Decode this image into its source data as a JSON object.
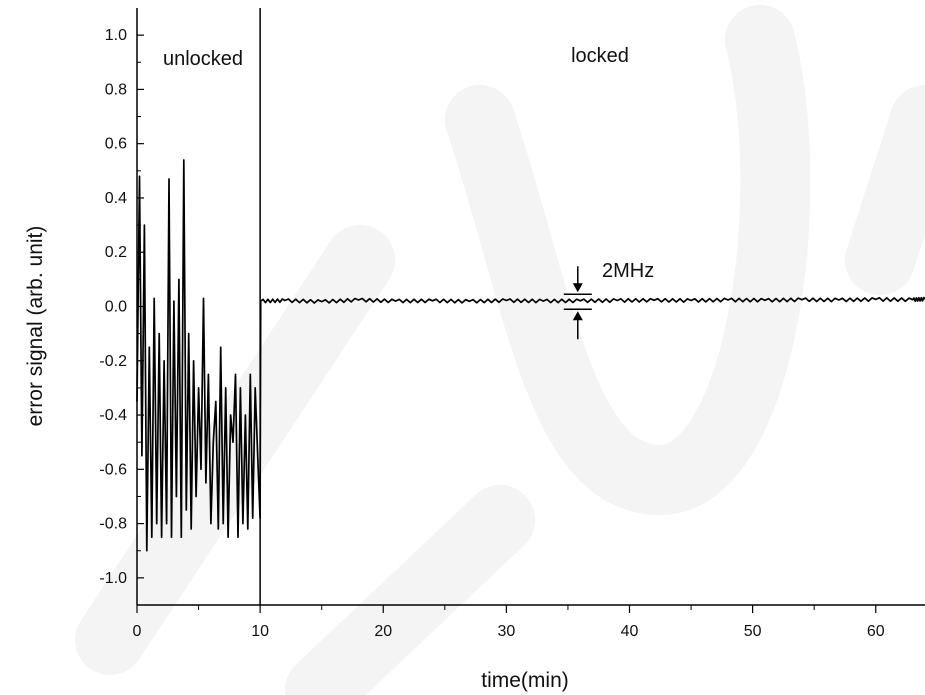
{
  "chart_data": {
    "type": "line",
    "title": "",
    "xlabel": "time(min)",
    "ylabel": "error signal (arb. unit)",
    "xlim": [
      0,
      64
    ],
    "ylim": [
      -1.1,
      1.1
    ],
    "x_ticks": [
      0,
      10,
      20,
      30,
      40,
      50,
      60
    ],
    "y_ticks": [
      1.0,
      0.8,
      0.6,
      0.4,
      0.2,
      0.0,
      -0.2,
      -0.4,
      -0.6,
      -0.8,
      -1.0
    ],
    "x_tick_labels": [
      "0",
      "10",
      "20",
      "30",
      "40",
      "50",
      "60"
    ],
    "y_tick_labels": [
      "1.0",
      "0.8",
      "0.6",
      "0.4",
      "0.2",
      "0.0",
      "-0.2",
      "-0.4",
      "-0.6",
      "-0.8",
      "-1.0"
    ],
    "grid": false,
    "legend": "none",
    "divider_x": 10,
    "series": [
      {
        "color": "#000000",
        "x": [
          0,
          0.2,
          0.4,
          0.6,
          0.8,
          1.0,
          1.2,
          1.4,
          1.6,
          1.8,
          2.0,
          2.2,
          2.4,
          2.6,
          2.8,
          3.0,
          3.2,
          3.4,
          3.6,
          3.8,
          4.0,
          4.2,
          4.4,
          4.6,
          4.8,
          5.0,
          5.2,
          5.4,
          5.6,
          5.8,
          6.0,
          6.2,
          6.4,
          6.6,
          6.8,
          7.0,
          7.2,
          7.4,
          7.6,
          7.8,
          8.0,
          8.2,
          8.4,
          8.6,
          8.8,
          9.0,
          9.2,
          9.4,
          9.6,
          9.8,
          10.0,
          10.05,
          12,
          15,
          18,
          21,
          24,
          27,
          30,
          33,
          36,
          39,
          42,
          45,
          48,
          51,
          54,
          57,
          60,
          63,
          64
        ],
        "y": [
          -0.35,
          0.48,
          -0.55,
          0.3,
          -0.9,
          -0.15,
          -0.85,
          0.03,
          -0.8,
          -0.1,
          -0.85,
          -0.2,
          -0.8,
          0.47,
          -0.85,
          0.02,
          -0.7,
          0.1,
          -0.85,
          0.54,
          -0.75,
          -0.1,
          -0.82,
          -0.2,
          -0.7,
          -0.3,
          -0.6,
          0.03,
          -0.65,
          -0.25,
          -0.8,
          -0.5,
          -0.35,
          -0.82,
          -0.15,
          -0.8,
          -0.3,
          -0.85,
          -0.4,
          -0.5,
          -0.25,
          -0.85,
          -0.3,
          -0.8,
          -0.4,
          -0.82,
          -0.25,
          -0.78,
          -0.3,
          -0.55,
          -0.78,
          0.02,
          0.022,
          0.018,
          0.024,
          0.02,
          0.021,
          0.019,
          0.022,
          0.02,
          0.021,
          0.022,
          0.023,
          0.022,
          0.024,
          0.023,
          0.025,
          0.024,
          0.026,
          0.025,
          0.027
        ]
      }
    ],
    "annotations": [
      {
        "id": "unlocked",
        "text": "unlocked",
        "x": 4.5,
        "y": 0.9
      },
      {
        "id": "locked",
        "text": "locked",
        "x": 37.5,
        "y": 0.92
      },
      {
        "id": "width",
        "text": "2MHz",
        "x": 40.5,
        "y": 0.12
      }
    ]
  }
}
